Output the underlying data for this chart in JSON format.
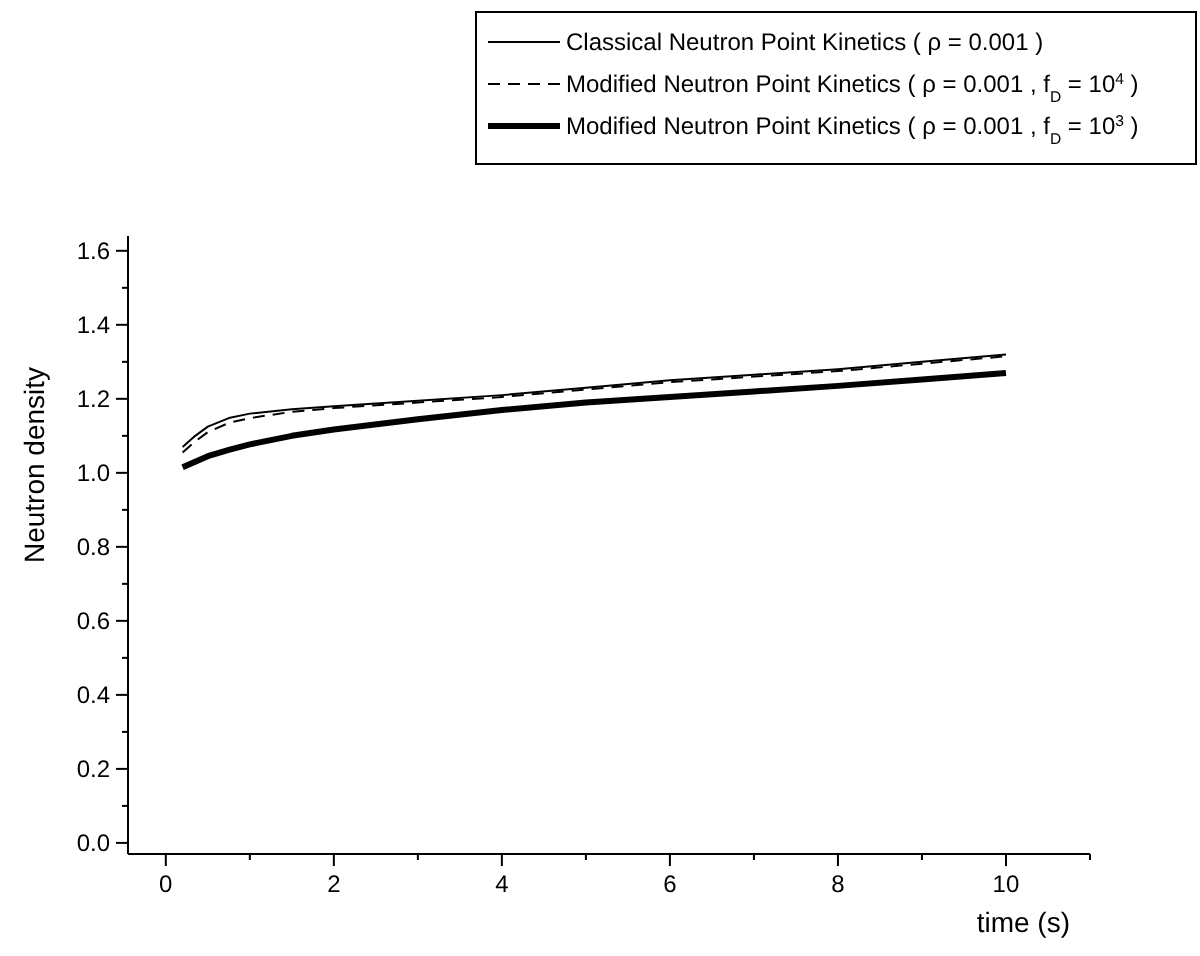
{
  "chart_data": {
    "type": "line",
    "xlabel": "time (s)",
    "ylabel": "Neutron density",
    "xlim": [
      -0.45,
      11.0
    ],
    "ylim": [
      -0.03,
      1.64
    ],
    "xticks": [
      0,
      {
        "value": 1,
        "label": null
      },
      2,
      {
        "value": 3,
        "label": null
      },
      4,
      {
        "value": 5,
        "label": null
      },
      6,
      {
        "value": 7,
        "label": null
      },
      8,
      {
        "value": 9,
        "label": null
      },
      10,
      {
        "value": 11,
        "label": null
      }
    ],
    "yticks": [
      "0.0",
      {
        "value": 0.1,
        "label": null
      },
      {
        "value": 0.2,
        "label": "0.2"
      },
      {
        "value": 0.3,
        "label": null
      },
      {
        "value": 0.4,
        "label": "0.4"
      },
      {
        "value": 0.5,
        "label": null
      },
      {
        "value": 0.6,
        "label": "0.6"
      },
      {
        "value": 0.7,
        "label": null
      },
      {
        "value": 0.8,
        "label": "0.8"
      },
      {
        "value": 0.9,
        "label": null
      },
      {
        "value": 1.0,
        "label": "1.0"
      },
      {
        "value": 1.1,
        "label": null
      },
      {
        "value": 1.2,
        "label": "1.2"
      },
      {
        "value": 1.3,
        "label": null
      },
      {
        "value": 1.4,
        "label": "1.4"
      },
      {
        "value": 1.5,
        "label": null
      },
      {
        "value": 1.6,
        "label": "1.6"
      }
    ],
    "grid": false,
    "legend": "top right",
    "marker": "none",
    "x": [
      0.2,
      0.35,
      0.5,
      0.75,
      1,
      1.5,
      2,
      3,
      4,
      5,
      6,
      7,
      8,
      9,
      10
    ],
    "series": [
      {
        "name": "Classical Neutron Point Kinetics ( ρ = 0.001 )",
        "color": "#000000",
        "line_style": "solid",
        "values": [
          1.07,
          1.1,
          1.125,
          1.148,
          1.16,
          1.172,
          1.18,
          1.195,
          1.21,
          1.23,
          1.25,
          1.265,
          1.28,
          1.3,
          1.32
        ]
      },
      {
        "name": "Modified Neutron Point Kinetics ( ρ = 0.001 , f$_{D}$ = 10$^{4}$ )",
        "color": "#000000",
        "line_style": "dashed",
        "values": [
          1.055,
          1.085,
          1.11,
          1.135,
          1.148,
          1.165,
          1.175,
          1.19,
          1.205,
          1.225,
          1.245,
          1.26,
          1.275,
          1.295,
          1.315
        ]
      },
      {
        "name": "Modified Neutron Point Kinetics ( ρ = 0.001 , f$_{D}$ = 10$^{3}$ )",
        "color": "#000000",
        "line_style": "solid",
        "values": [
          1.015,
          1.03,
          1.045,
          1.062,
          1.077,
          1.1,
          1.117,
          1.145,
          1.17,
          1.19,
          1.205,
          1.22,
          1.235,
          1.252,
          1.27
        ]
      }
    ]
  }
}
